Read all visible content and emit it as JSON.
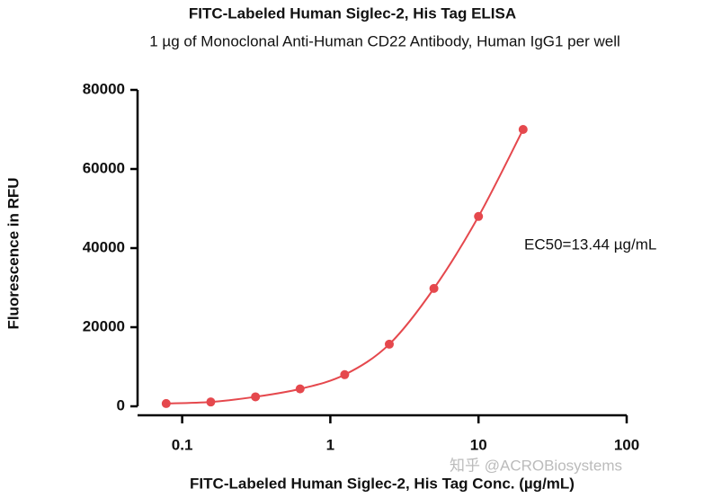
{
  "chart_data": {
    "type": "scatter",
    "title": "FITC-Labeled Human Siglec-2, His Tag ELISA",
    "subtitle": "1 µg of Monoclonal Anti-Human CD22 Antibody, Human IgG1 per well",
    "x_label": "FITC-Labeled Human Siglec-2, His Tag Conc. (µg/mL)",
    "y_label": "Fluorescence in RFU",
    "annotation": "EC50=13.44 µg/mL",
    "watermark": "知乎 @ACROBiosystems",
    "x_scale": "log",
    "color": "#e5484d",
    "x": [
      0.078,
      0.156,
      0.3125,
      0.625,
      1.25,
      2.5,
      5,
      10,
      20
    ],
    "values": [
      700,
      1100,
      2400,
      4400,
      8000,
      15700,
      29800,
      48000,
      70000
    ],
    "xlim": [
      0.05,
      100
    ],
    "xticks": [
      0.1,
      1,
      10,
      100
    ],
    "ylim": [
      0,
      80000
    ],
    "yticks": [
      0,
      20000,
      40000,
      60000,
      80000
    ]
  }
}
